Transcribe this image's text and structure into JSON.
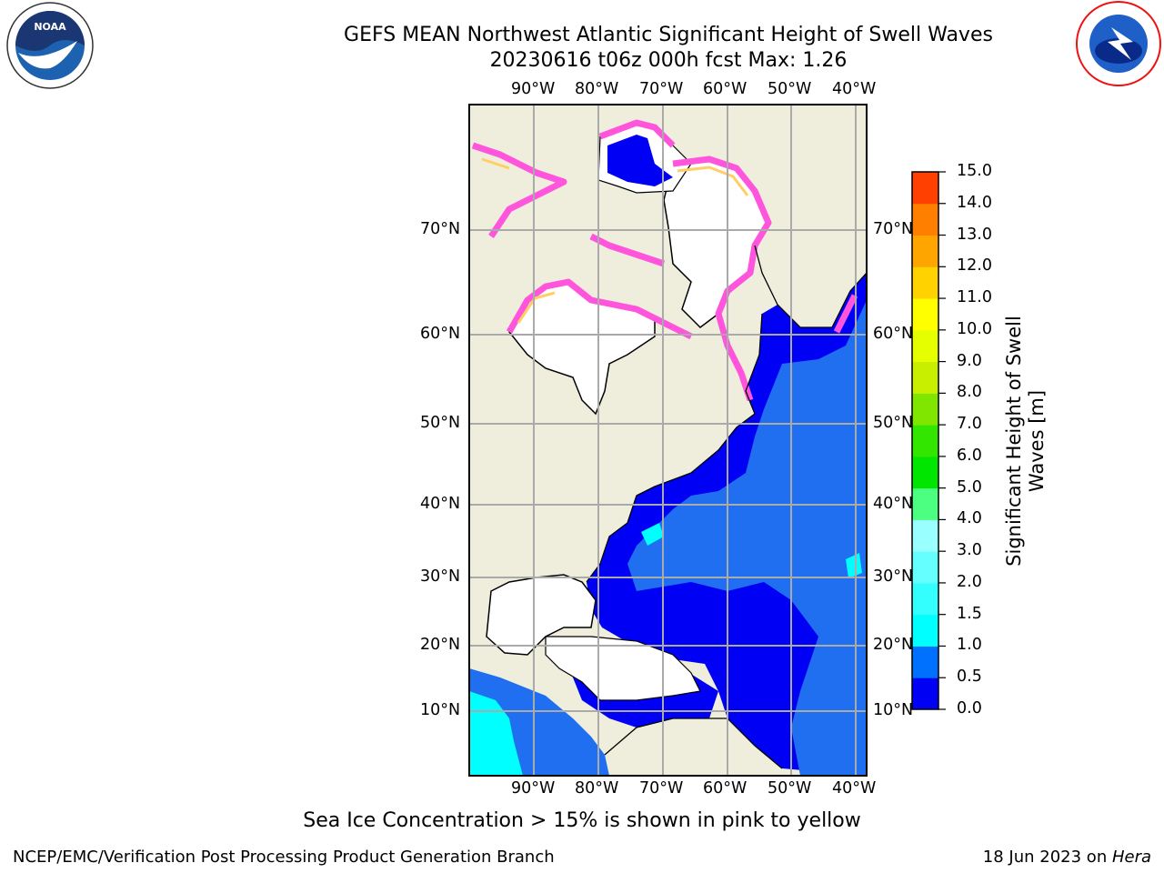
{
  "title_line1": "GEFS MEAN Northwest Atlantic Significant Height of Swell Waves",
  "title_line2": "20230616 t06z 000h fcst   Max: 1.26",
  "logos": {
    "left": "noaa-logo",
    "right": "nws-logo"
  },
  "map": {
    "lon_labels": [
      "90°W",
      "80°W",
      "70°W",
      "60°W",
      "50°W",
      "40°W"
    ],
    "lat_labels": [
      "70°N",
      "60°N",
      "50°N",
      "40°N",
      "30°N",
      "20°N",
      "10°N"
    ]
  },
  "colorbar": {
    "label": "Significant Height of Swell Waves [m]",
    "ticks": [
      "0.0",
      "0.5",
      "1.0",
      "1.5",
      "2.0",
      "3.0",
      "4.0",
      "5.0",
      "6.0",
      "7.0",
      "8.0",
      "9.0",
      "10.0",
      "11.0",
      "12.0",
      "13.0",
      "14.0",
      "15.0"
    ],
    "colors": [
      "#0000f5",
      "#0070ff",
      "#00ffff",
      "#33ffff",
      "#66ffff",
      "#99ffff",
      "#4dff80",
      "#00e600",
      "#33e600",
      "#80e600",
      "#c8ef00",
      "#e6ff00",
      "#ffff00",
      "#ffd200",
      "#ffa500",
      "#ff8000",
      "#ff4000",
      "#ff0000"
    ]
  },
  "note": "Sea Ice Concentration > 15% is shown in pink to yellow",
  "footer_left": "NCEP/EMC/Verification Post Processing Product Generation Branch",
  "footer_right_prefix": "18 Jun 2023 on ",
  "footer_right_host": "Hera",
  "palette": {
    "land": "#efeedd",
    "ocean_deep": "#0000f5",
    "ocean_mid": "#1f6ff0",
    "ice_pink": "#ff66dd",
    "ice_yellow": "#ffd24d"
  }
}
